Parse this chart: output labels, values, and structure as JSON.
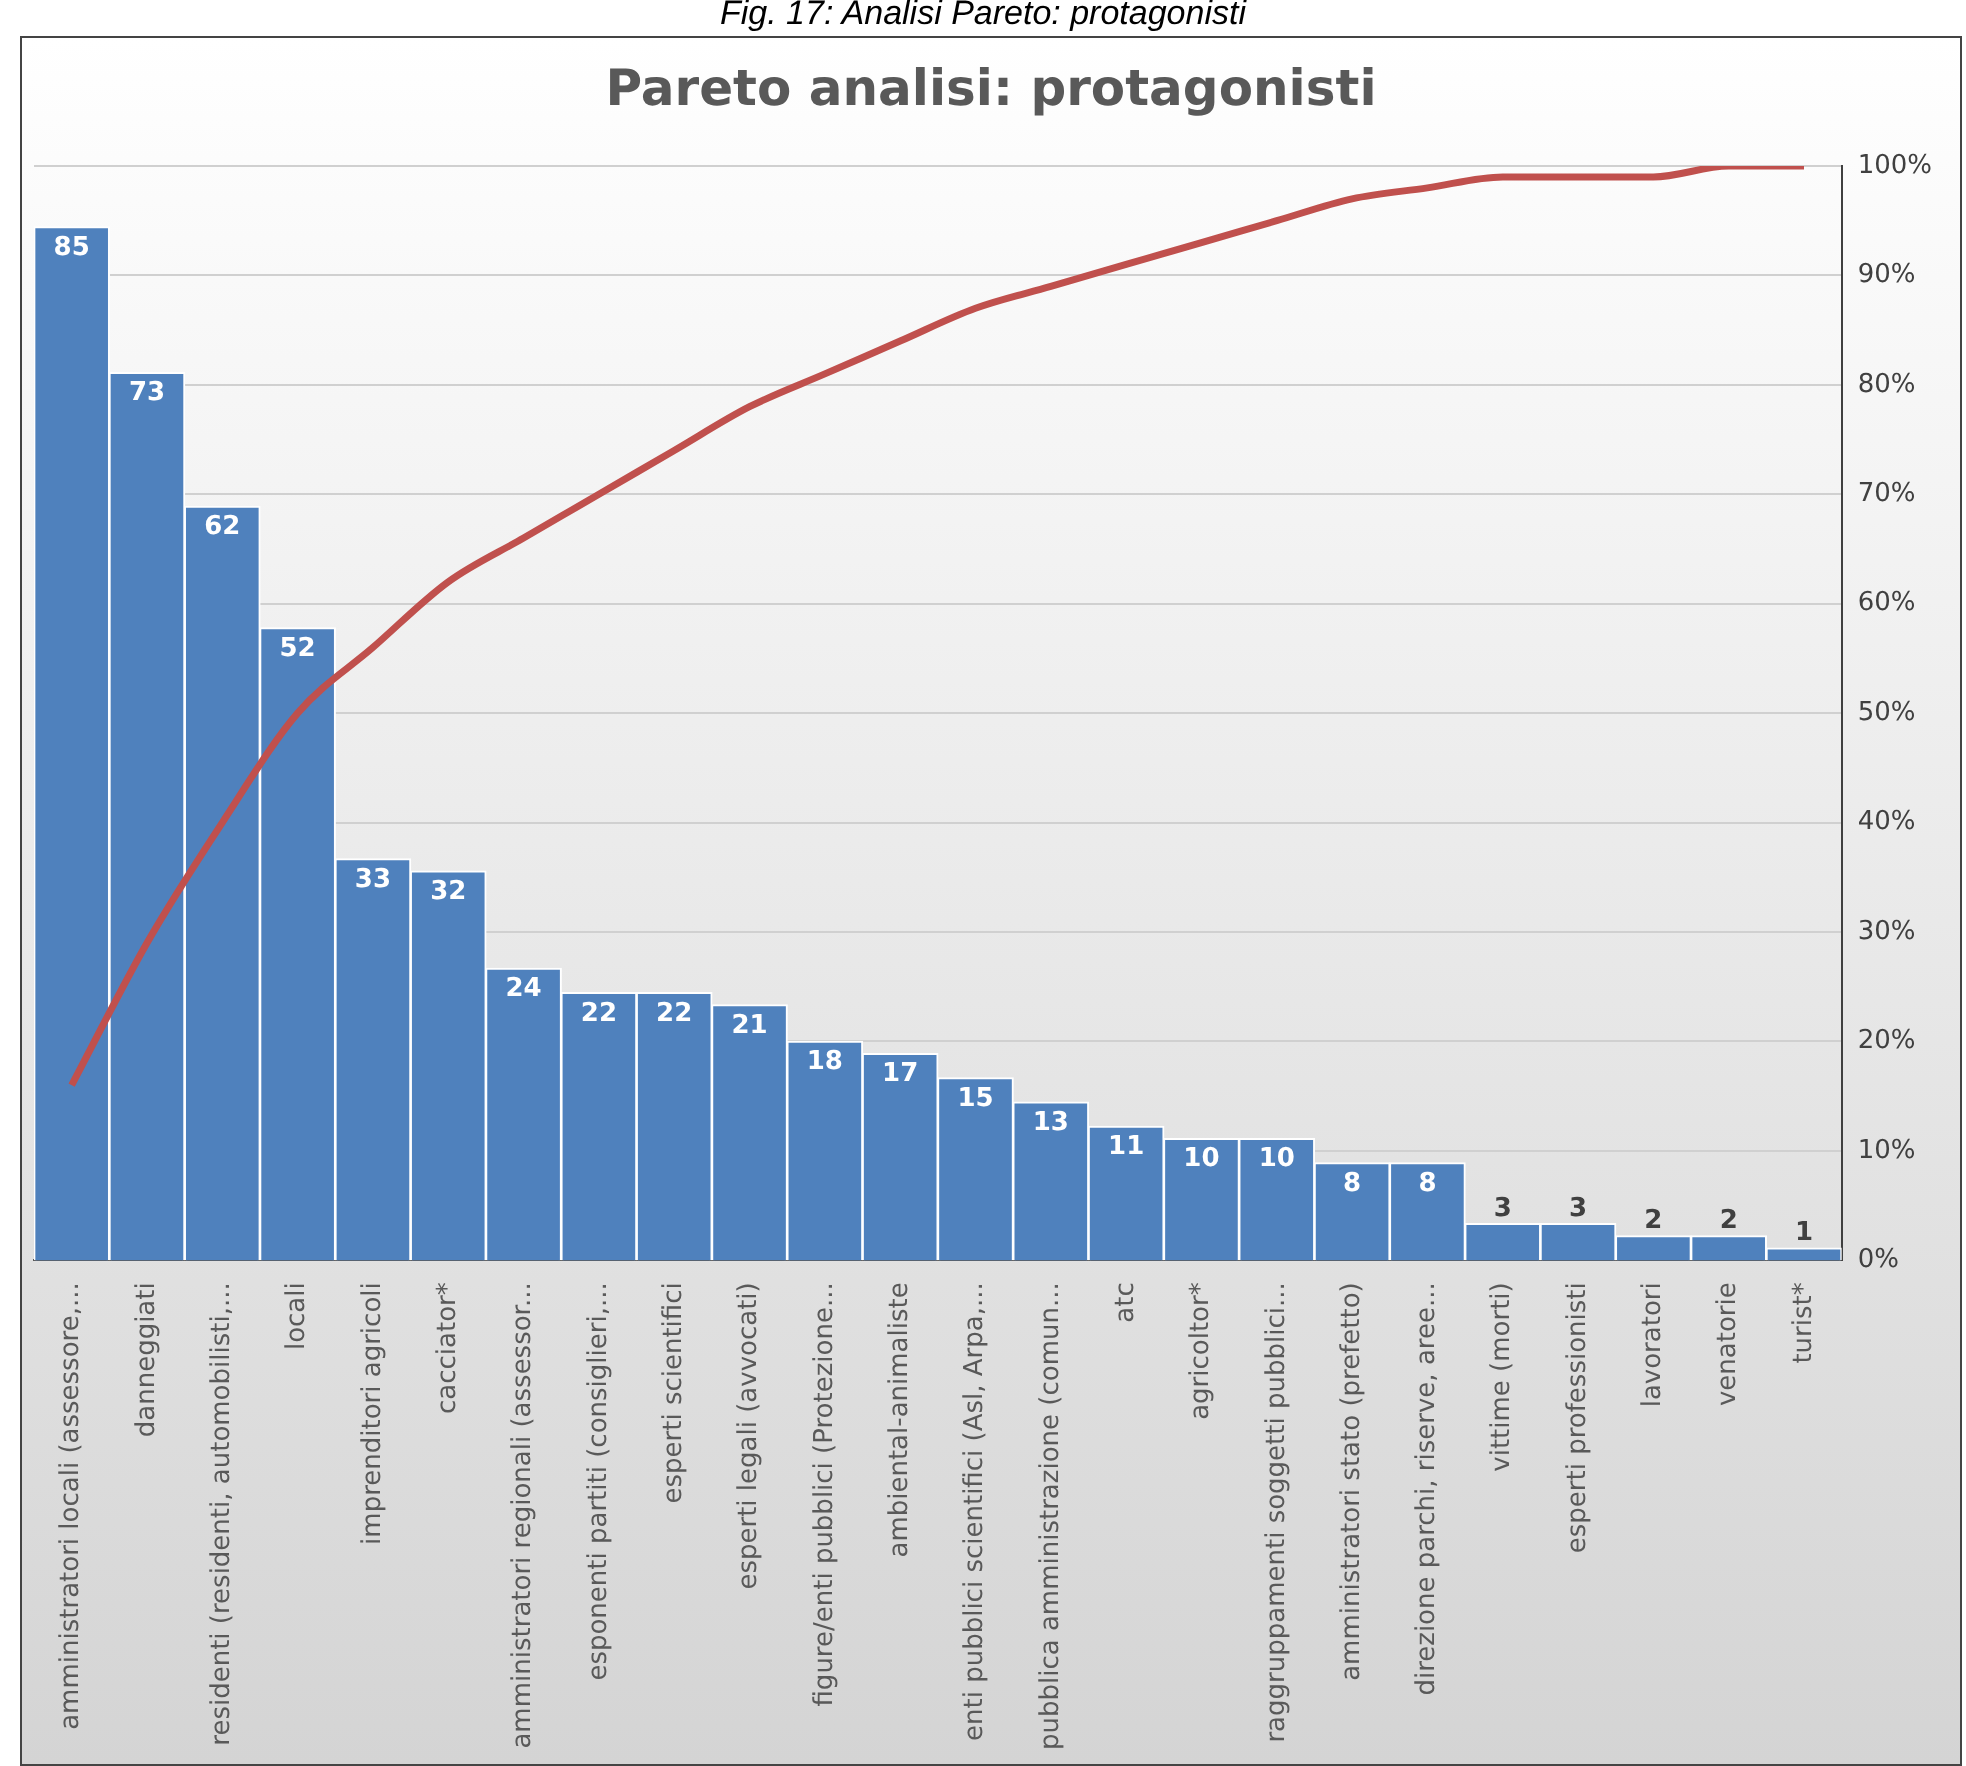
{
  "chart_data": {
    "type": "bar",
    "title": "Pareto analisi: protagonisti",
    "annotations": [
      "Fig. 17: Analisi Pareto: protagonisti"
    ],
    "categories": [
      "amministratori locali (assessore,...",
      "danneggiati",
      "residenti (residenti, automobilisti,...",
      "locali",
      "imprenditori agricoli",
      "cacciator*",
      "amministratori regionali (assessor...",
      "esponenti partiti (consiglieri,...",
      "esperti scientifici",
      "esperti legali (avvocati)",
      "figure/enti pubblici (Protezione...",
      "ambiental-animaliste",
      "enti pubblici scientifici (Asl, Arpa,...",
      "pubblica amministrazione (comun...",
      "atc",
      "agricoltor*",
      "raggruppamenti soggetti pubblici...",
      "amministratori stato (prefetto)",
      "direzione parchi, riserve, aree...",
      "vittime (morti)",
      "esperti professionisti",
      "lavoratori",
      "venatorie",
      "turist*"
    ],
    "series": [
      {
        "color": "#4f81bd",
        "values": [
          85,
          73,
          62,
          52,
          33,
          32,
          24,
          22,
          22,
          21,
          18,
          17,
          15,
          13,
          11,
          10,
          10,
          8,
          8,
          3,
          3,
          2,
          2,
          1
        ],
        "value_labels": [
          "85",
          "73",
          "62",
          "52",
          "33",
          "32",
          "24",
          "22",
          "22",
          "21",
          "18",
          "17",
          "15",
          "13",
          "11",
          "10",
          "10",
          "8",
          "8",
          "3",
          "3",
          "2",
          "2",
          "1"
        ]
      },
      {
        "type": "line",
        "axis": "y2",
        "color": "#c0504d",
        "values": [
          16,
          29,
          40,
          50,
          56,
          62,
          66,
          70,
          74,
          78,
          81,
          84,
          87,
          89,
          91,
          93,
          95,
          97,
          98,
          99,
          99,
          99,
          100,
          100
        ]
      }
    ],
    "ylim": [
      0,
      90
    ],
    "y2lim": [
      0,
      100
    ],
    "y2ticks": [
      {
        "value": 0,
        "label": "0%"
      },
      {
        "value": 10,
        "label": "10%"
      },
      {
        "value": 20,
        "label": "20%"
      },
      {
        "value": 30,
        "label": "30%"
      },
      {
        "value": 40,
        "label": "40%"
      },
      {
        "value": 50,
        "label": "50%"
      },
      {
        "value": 60,
        "label": "60%"
      },
      {
        "value": 70,
        "label": "70%"
      },
      {
        "value": 80,
        "label": "80%"
      },
      {
        "value": 90,
        "label": "90%"
      },
      {
        "value": 100,
        "label": "100%"
      }
    ],
    "grid": "y2",
    "legend": false,
    "marker": "none"
  }
}
